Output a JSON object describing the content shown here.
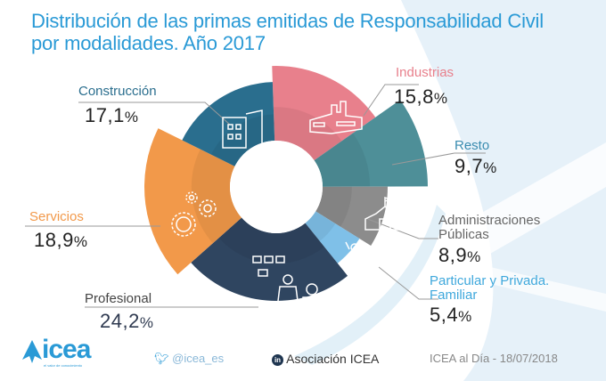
{
  "title_line1": "Distribución de las primas emitidas de Responsabilidad Civil",
  "title_line2": "por modalidades. Año 2017",
  "chart_data": {
    "type": "pie",
    "variant": "donut-rose",
    "title": "Distribución de las primas emitidas de Responsabilidad Civil por modalidades. Año 2017",
    "unit": "%",
    "slices": [
      {
        "label": "Industrias",
        "value": 15.8,
        "display": "15,8",
        "color": "#e8808c",
        "icon": "factory-icon"
      },
      {
        "label": "Resto",
        "value": 9.7,
        "display": "9,7",
        "color": "#4e8f98",
        "icon": ""
      },
      {
        "label": "Administraciones Públicas",
        "value": 8.9,
        "display": "8,9",
        "color": "#8c8c8c",
        "icon": "school-building-icon"
      },
      {
        "label": "Particular y Privada. Familiar",
        "value": 5.4,
        "display": "5,4",
        "color": "#7fc0e8",
        "icon": "family-icon"
      },
      {
        "label": "Profesional",
        "value": 24.2,
        "display": "24,2",
        "color": "#2f4560",
        "icon": "meeting-icon"
      },
      {
        "label": "Servicios",
        "value": 18.9,
        "display": "18,9",
        "color": "#f2994a",
        "icon": "gears-icon"
      },
      {
        "label": "Construcción",
        "value": 17.1,
        "display": "17,1",
        "color": "#2a6e8e",
        "icon": "building-icon"
      }
    ],
    "label_colors": {
      "Industrias": "#e8808c",
      "Resto": "#3a8cb0",
      "Administraciones Públicas": "#666666",
      "Particular y Privada. Familiar": "#3fa8dc",
      "Profesional": "#444444",
      "Servicios": "#f2994a",
      "Construcción": "#2a6e8e"
    }
  },
  "labels": {
    "industrias": {
      "name": "Industrias",
      "value": "15,8"
    },
    "resto": {
      "name": "Resto",
      "value": "9,7"
    },
    "admin_l1": "Administraciones",
    "admin_l2": "Públicas",
    "admin_value": "8,9",
    "particular_l1": "Particular y Privada.",
    "particular_l2": "Familiar",
    "particular_value": "5,4",
    "profesional": {
      "name": "Profesional",
      "value": "24,2"
    },
    "servicios": {
      "name": "Servicios",
      "value": "18,9"
    },
    "construccion": {
      "name": "Construcción",
      "value": "17,1"
    },
    "pct": "%"
  },
  "footer": {
    "logo": "icea",
    "logo_tagline": "el valor de conocimiento",
    "twitter": "@icea_es",
    "linkedin": "Asociación ICEA",
    "date_text": "ICEA al Día - 18/07/2018"
  }
}
